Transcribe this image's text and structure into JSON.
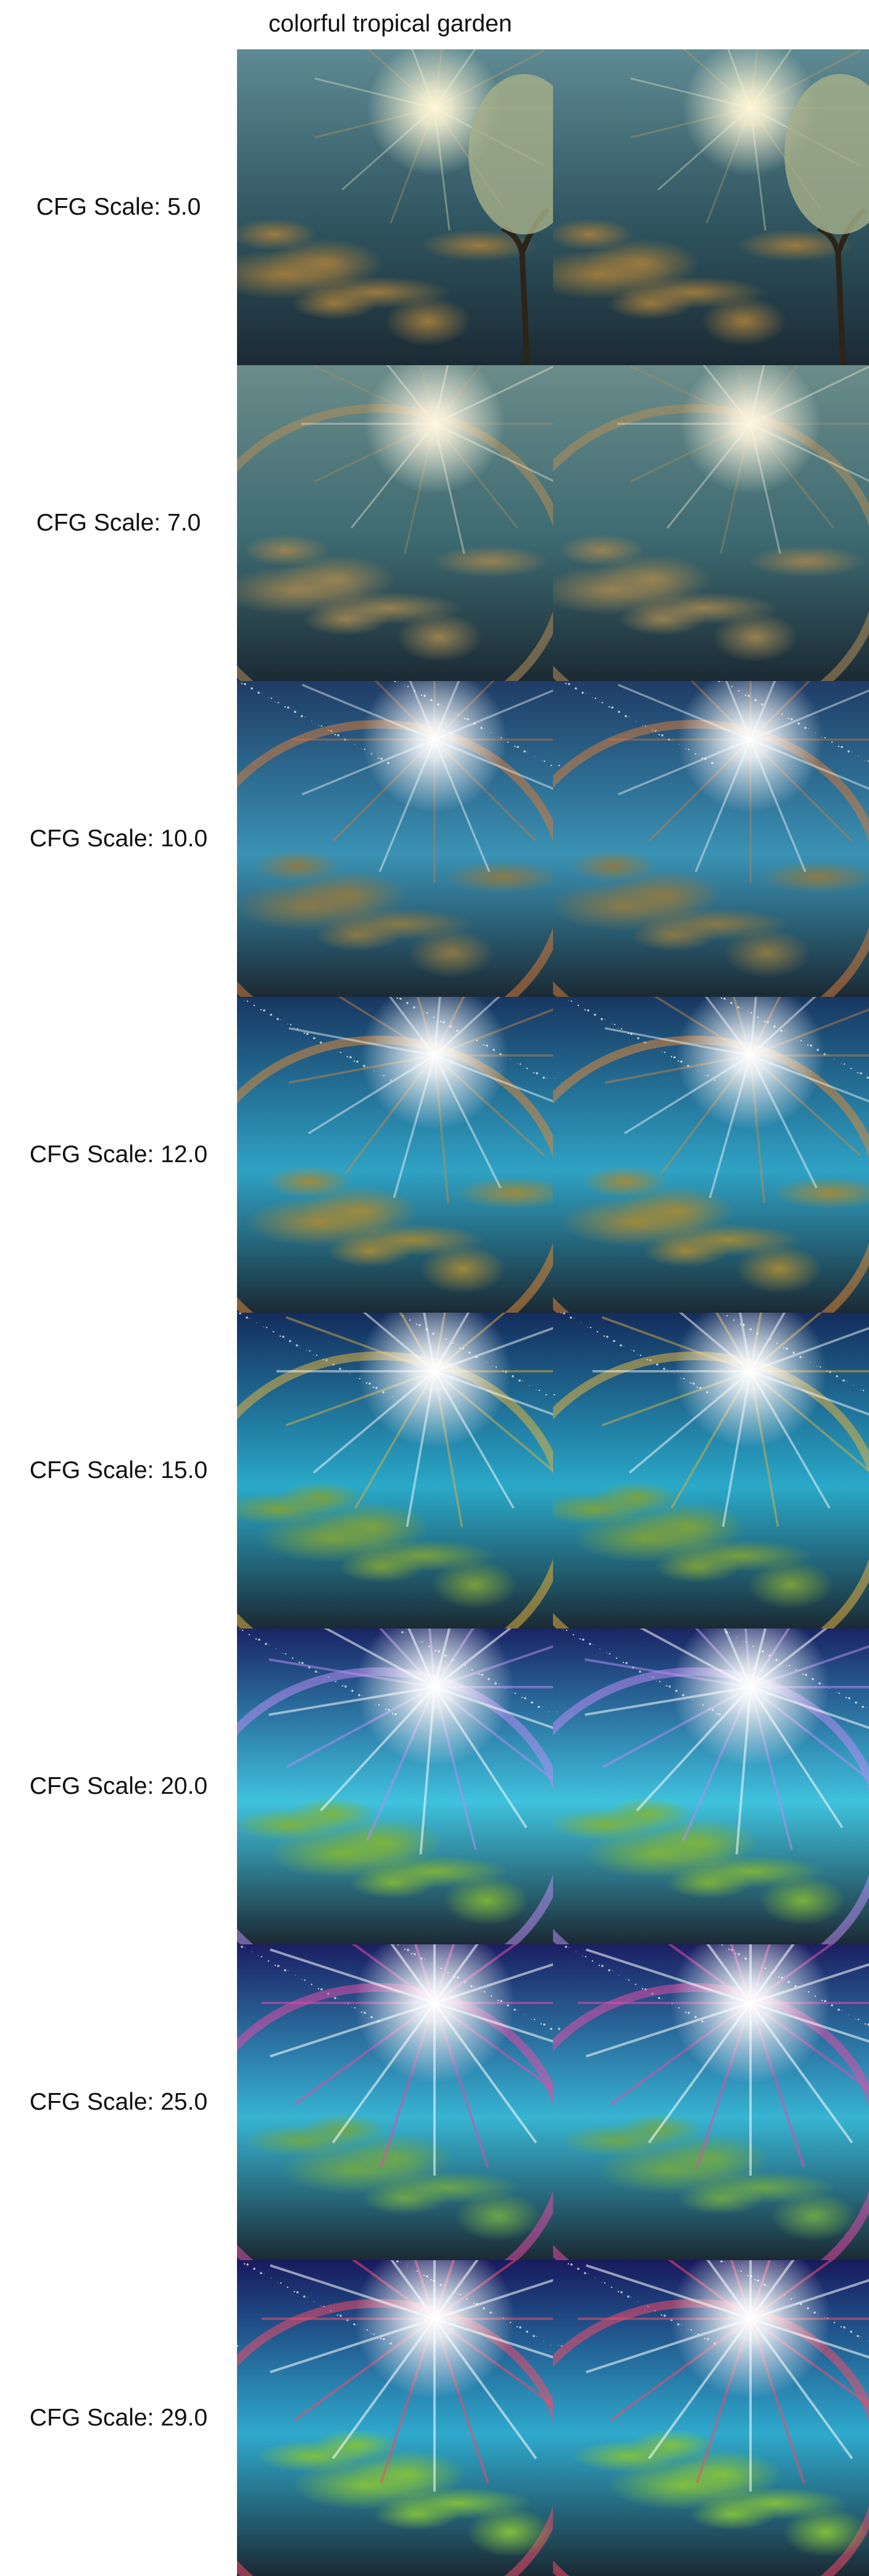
{
  "header": {
    "prompt": "colorful tropical garden"
  },
  "rows": [
    {
      "label": "CFG Scale: 5.0",
      "cfg": 5.0,
      "images": [
        "generated-image",
        "generated-image"
      ],
      "palette": {
        "sky": "#5f8a93",
        "sea": "#2f5560",
        "land": "#a07c3e",
        "glow": "#fff7d6",
        "accent": "#c9a25c"
      },
      "tree": true,
      "ring": false,
      "star": 0.5
    },
    {
      "label": "CFG Scale: 7.0",
      "cfg": 7.0,
      "images": [
        "generated-image",
        "generated-image"
      ],
      "palette": {
        "sky": "#6b8c8a",
        "sea": "#3d6a72",
        "land": "#9c8452",
        "glow": "#fff6e0",
        "accent": "#b28e5a"
      },
      "tree": false,
      "ring": true,
      "star": 0.6
    },
    {
      "label": "CFG Scale: 10.0",
      "cfg": 10.0,
      "images": [
        "generated-image",
        "generated-image"
      ],
      "palette": {
        "sky": "#1f3c66",
        "sea": "#3a92b4",
        "land": "#8e7a45",
        "glow": "#ffffff",
        "accent": "#d27a3c"
      },
      "tree": false,
      "ring": true,
      "star": 0.7
    },
    {
      "label": "CFG Scale: 12.0",
      "cfg": 12.0,
      "images": [
        "generated-image",
        "generated-image"
      ],
      "palette": {
        "sky": "#183762",
        "sea": "#2fa2c4",
        "land": "#a38a3a",
        "glow": "#ffffff",
        "accent": "#d8893a"
      },
      "tree": false,
      "ring": true,
      "star": 0.75
    },
    {
      "label": "CFG Scale: 15.0",
      "cfg": 15.0,
      "images": [
        "generated-image",
        "generated-image"
      ],
      "palette": {
        "sky": "#142c5c",
        "sea": "#2aa9c9",
        "land": "#7ea23c",
        "glow": "#ffffff",
        "accent": "#e0b040"
      },
      "tree": false,
      "ring": true,
      "star": 0.85
    },
    {
      "label": "CFG Scale: 20.0",
      "cfg": 20.0,
      "images": [
        "generated-image",
        "generated-image"
      ],
      "palette": {
        "sky": "#1a2566",
        "sea": "#3fc2dd",
        "land": "#7fb43a",
        "glow": "#ffffff",
        "accent": "#b68cf0"
      },
      "tree": false,
      "ring": true,
      "star": 0.95
    },
    {
      "label": "CFG Scale: 25.0",
      "cfg": 25.0,
      "images": [
        "generated-image",
        "generated-image"
      ],
      "palette": {
        "sky": "#1c1f64",
        "sea": "#37b4d2",
        "land": "#6fa84a",
        "glow": "#ffffff",
        "accent": "#e04ca8"
      },
      "tree": false,
      "ring": true,
      "star": 1.0
    },
    {
      "label": "CFG Scale: 29.0",
      "cfg": 29.0,
      "images": [
        "generated-image",
        "generated-image"
      ],
      "palette": {
        "sky": "#181a5e",
        "sea": "#2fa9cc",
        "land": "#84c23c",
        "glow": "#ffffff",
        "accent": "#f04a6a"
      },
      "tree": false,
      "ring": true,
      "star": 1.0
    }
  ]
}
